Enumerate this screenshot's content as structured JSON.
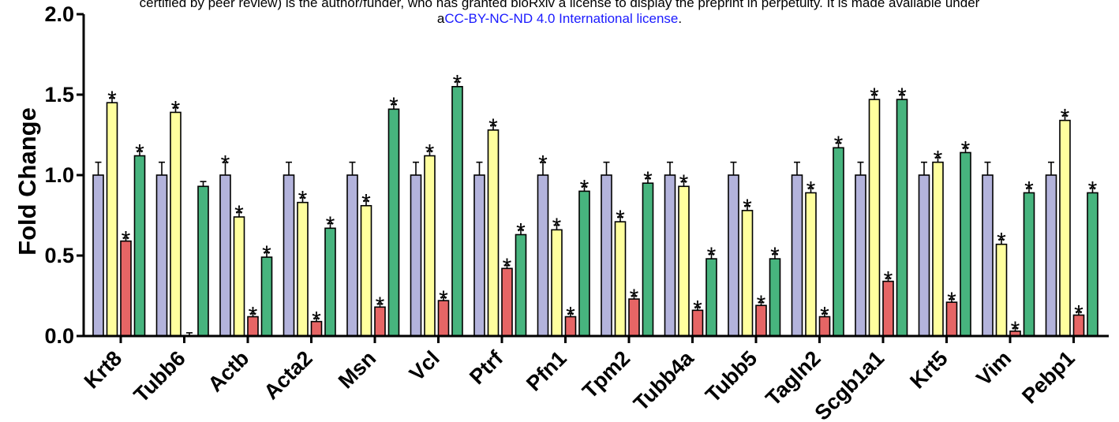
{
  "notice": {
    "line1": "certified by peer review) is the author/funder, who has granted bioRxiv a license to display the preprint in perpetuity. It is made available under",
    "line2_prefix": "a",
    "license_link": "CC-BY-NC-ND 4.0 International license",
    "line2_suffix": "."
  },
  "chart_data": {
    "type": "bar",
    "title": "",
    "xlabel": "",
    "ylabel": "Fold Change",
    "ylim": [
      0,
      2.0
    ],
    "yticks": [
      "0.0",
      "0.5",
      "1.0",
      "1.5",
      "2.0"
    ],
    "grid": false,
    "legend": "none",
    "categories": [
      "Krt8",
      "Tubb6",
      "Actb",
      "Acta2",
      "Msn",
      "Vcl",
      "Ptrf",
      "Pfn1",
      "Tpm2",
      "Tubb4a",
      "Tubb5",
      "Tagln2",
      "Scgb1a1",
      "Krt5",
      "Vim",
      "Pebp1"
    ],
    "series": [
      {
        "color": "#b3b3dc",
        "values": [
          1.0,
          1.0,
          1.0,
          1.0,
          1.0,
          1.0,
          1.0,
          1.0,
          1.0,
          1.0,
          1.0,
          1.0,
          1.0,
          1.0,
          1.0,
          1.0
        ],
        "errors": [
          0.08,
          0.08,
          0.08,
          0.08,
          0.08,
          0.08,
          0.08,
          0.08,
          0.08,
          0.08,
          0.08,
          0.08,
          0.08,
          0.08,
          0.08,
          0.08
        ],
        "significant": [
          false,
          false,
          true,
          false,
          false,
          false,
          false,
          true,
          false,
          false,
          false,
          false,
          false,
          false,
          false,
          false
        ]
      },
      {
        "color": "#ffff9e",
        "values": [
          1.45,
          1.39,
          0.74,
          0.83,
          0.81,
          1.12,
          1.28,
          0.66,
          0.71,
          0.93,
          0.78,
          0.89,
          1.47,
          1.08,
          0.57,
          1.34
        ],
        "errors": [
          0.03,
          0.03,
          0.03,
          0.03,
          0.03,
          0.03,
          0.03,
          0.03,
          0.03,
          0.03,
          0.03,
          0.03,
          0.03,
          0.03,
          0.03,
          0.03
        ],
        "significant": [
          true,
          true,
          true,
          true,
          true,
          true,
          true,
          true,
          true,
          true,
          true,
          true,
          true,
          true,
          true,
          true
        ]
      },
      {
        "color": "#e66565",
        "values": [
          0.59,
          0.0,
          0.12,
          0.09,
          0.18,
          0.22,
          0.42,
          0.12,
          0.23,
          0.16,
          0.19,
          0.12,
          0.34,
          0.21,
          0.03,
          0.13
        ],
        "errors": [
          0.02,
          0.02,
          0.02,
          0.02,
          0.02,
          0.02,
          0.02,
          0.02,
          0.02,
          0.02,
          0.02,
          0.02,
          0.02,
          0.02,
          0.02,
          0.02
        ],
        "significant": [
          true,
          false,
          true,
          true,
          true,
          true,
          true,
          true,
          true,
          true,
          true,
          true,
          true,
          true,
          true,
          true
        ]
      },
      {
        "color": "#47b47e",
        "values": [
          1.12,
          0.93,
          0.49,
          0.67,
          1.41,
          1.55,
          0.63,
          0.9,
          0.95,
          0.48,
          0.48,
          1.17,
          1.47,
          1.14,
          0.89,
          0.89
        ],
        "errors": [
          0.03,
          0.03,
          0.03,
          0.03,
          0.03,
          0.03,
          0.03,
          0.03,
          0.03,
          0.03,
          0.03,
          0.03,
          0.03,
          0.03,
          0.03,
          0.03
        ],
        "significant": [
          true,
          false,
          true,
          true,
          true,
          true,
          true,
          true,
          true,
          true,
          true,
          true,
          true,
          true,
          true,
          true
        ]
      }
    ],
    "significance_marker": "*"
  }
}
